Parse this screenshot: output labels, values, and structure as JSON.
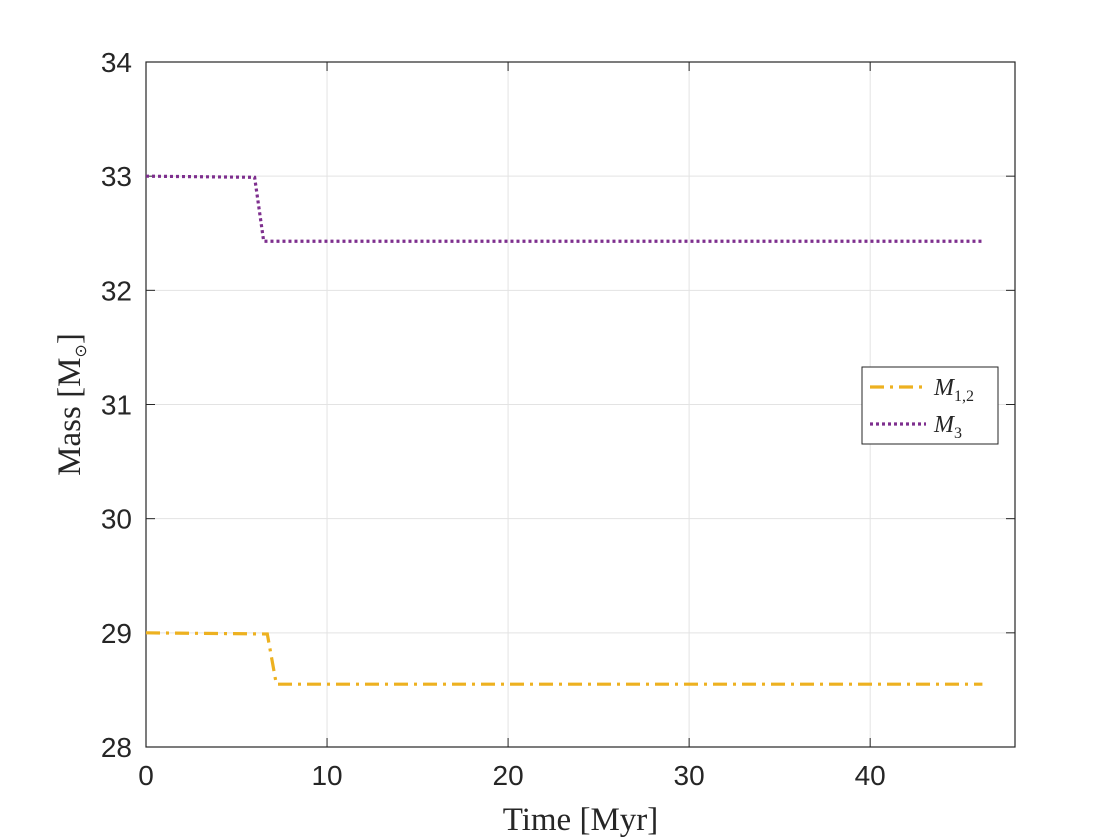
{
  "chart_data": {
    "type": "line",
    "xlabel": "Time [Myr]",
    "ylabel": "Mass [M",
    "ylabel_subscript": "⊙",
    "ylabel_suffix": "]",
    "xlim": [
      0,
      48
    ],
    "ylim": [
      28,
      34
    ],
    "xticks": [
      0,
      10,
      20,
      30,
      40
    ],
    "yticks": [
      28,
      29,
      30,
      31,
      32,
      33,
      34
    ],
    "grid": true,
    "legend_position": "right",
    "series": [
      {
        "name": "M",
        "name_subscript": "1,2",
        "color": "#EDB120",
        "style": "dash-dot",
        "x": [
          0,
          6.7,
          7.2,
          46.2
        ],
        "y": [
          29.0,
          28.99,
          28.55,
          28.55
        ]
      },
      {
        "name": "M",
        "name_subscript": "3",
        "color": "#7E2F8E",
        "style": "dotted",
        "x": [
          0,
          6.0,
          6.5,
          46.2
        ],
        "y": [
          33.0,
          32.99,
          32.43,
          32.43
        ]
      }
    ]
  }
}
